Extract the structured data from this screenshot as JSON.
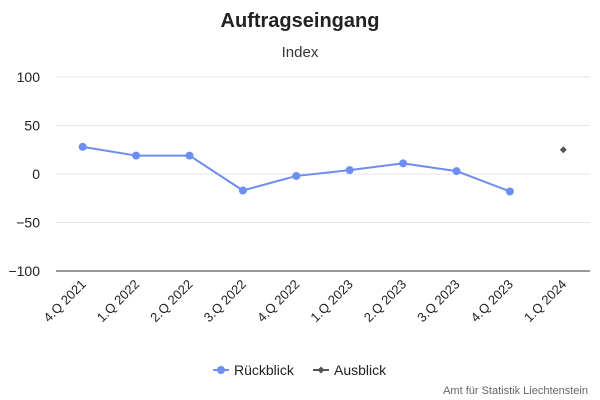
{
  "chart_data": {
    "type": "line",
    "title": "Auftragseingang",
    "subtitle": "",
    "ylabel": "Index",
    "xlabel": "",
    "categories": [
      "4.Q 2021",
      "1.Q 2022",
      "2.Q 2022",
      "3.Q 2022",
      "4.Q 2022",
      "1.Q 2023",
      "2.Q 2023",
      "3.Q 2023",
      "4.Q 2023",
      "1.Q 2024"
    ],
    "ylim": [
      -100,
      100
    ],
    "yticks": [
      100,
      50,
      0,
      -50,
      -100
    ],
    "ytick_labels": [
      "100",
      "50",
      "0",
      "−50",
      "−100"
    ],
    "grid": true,
    "legend_position": "bottom-center",
    "series": [
      {
        "name": "Rückblick",
        "color": "#6b8ef0",
        "marker": "circle",
        "values": [
          28,
          19,
          19,
          -17,
          -2,
          4,
          11,
          3,
          -18,
          null
        ]
      },
      {
        "name": "Ausblick",
        "color": "#555555",
        "marker": "diamond",
        "values": [
          null,
          null,
          null,
          null,
          null,
          null,
          null,
          null,
          null,
          25
        ]
      }
    ]
  },
  "credit": "Amt für Statistik Liechtenstein"
}
